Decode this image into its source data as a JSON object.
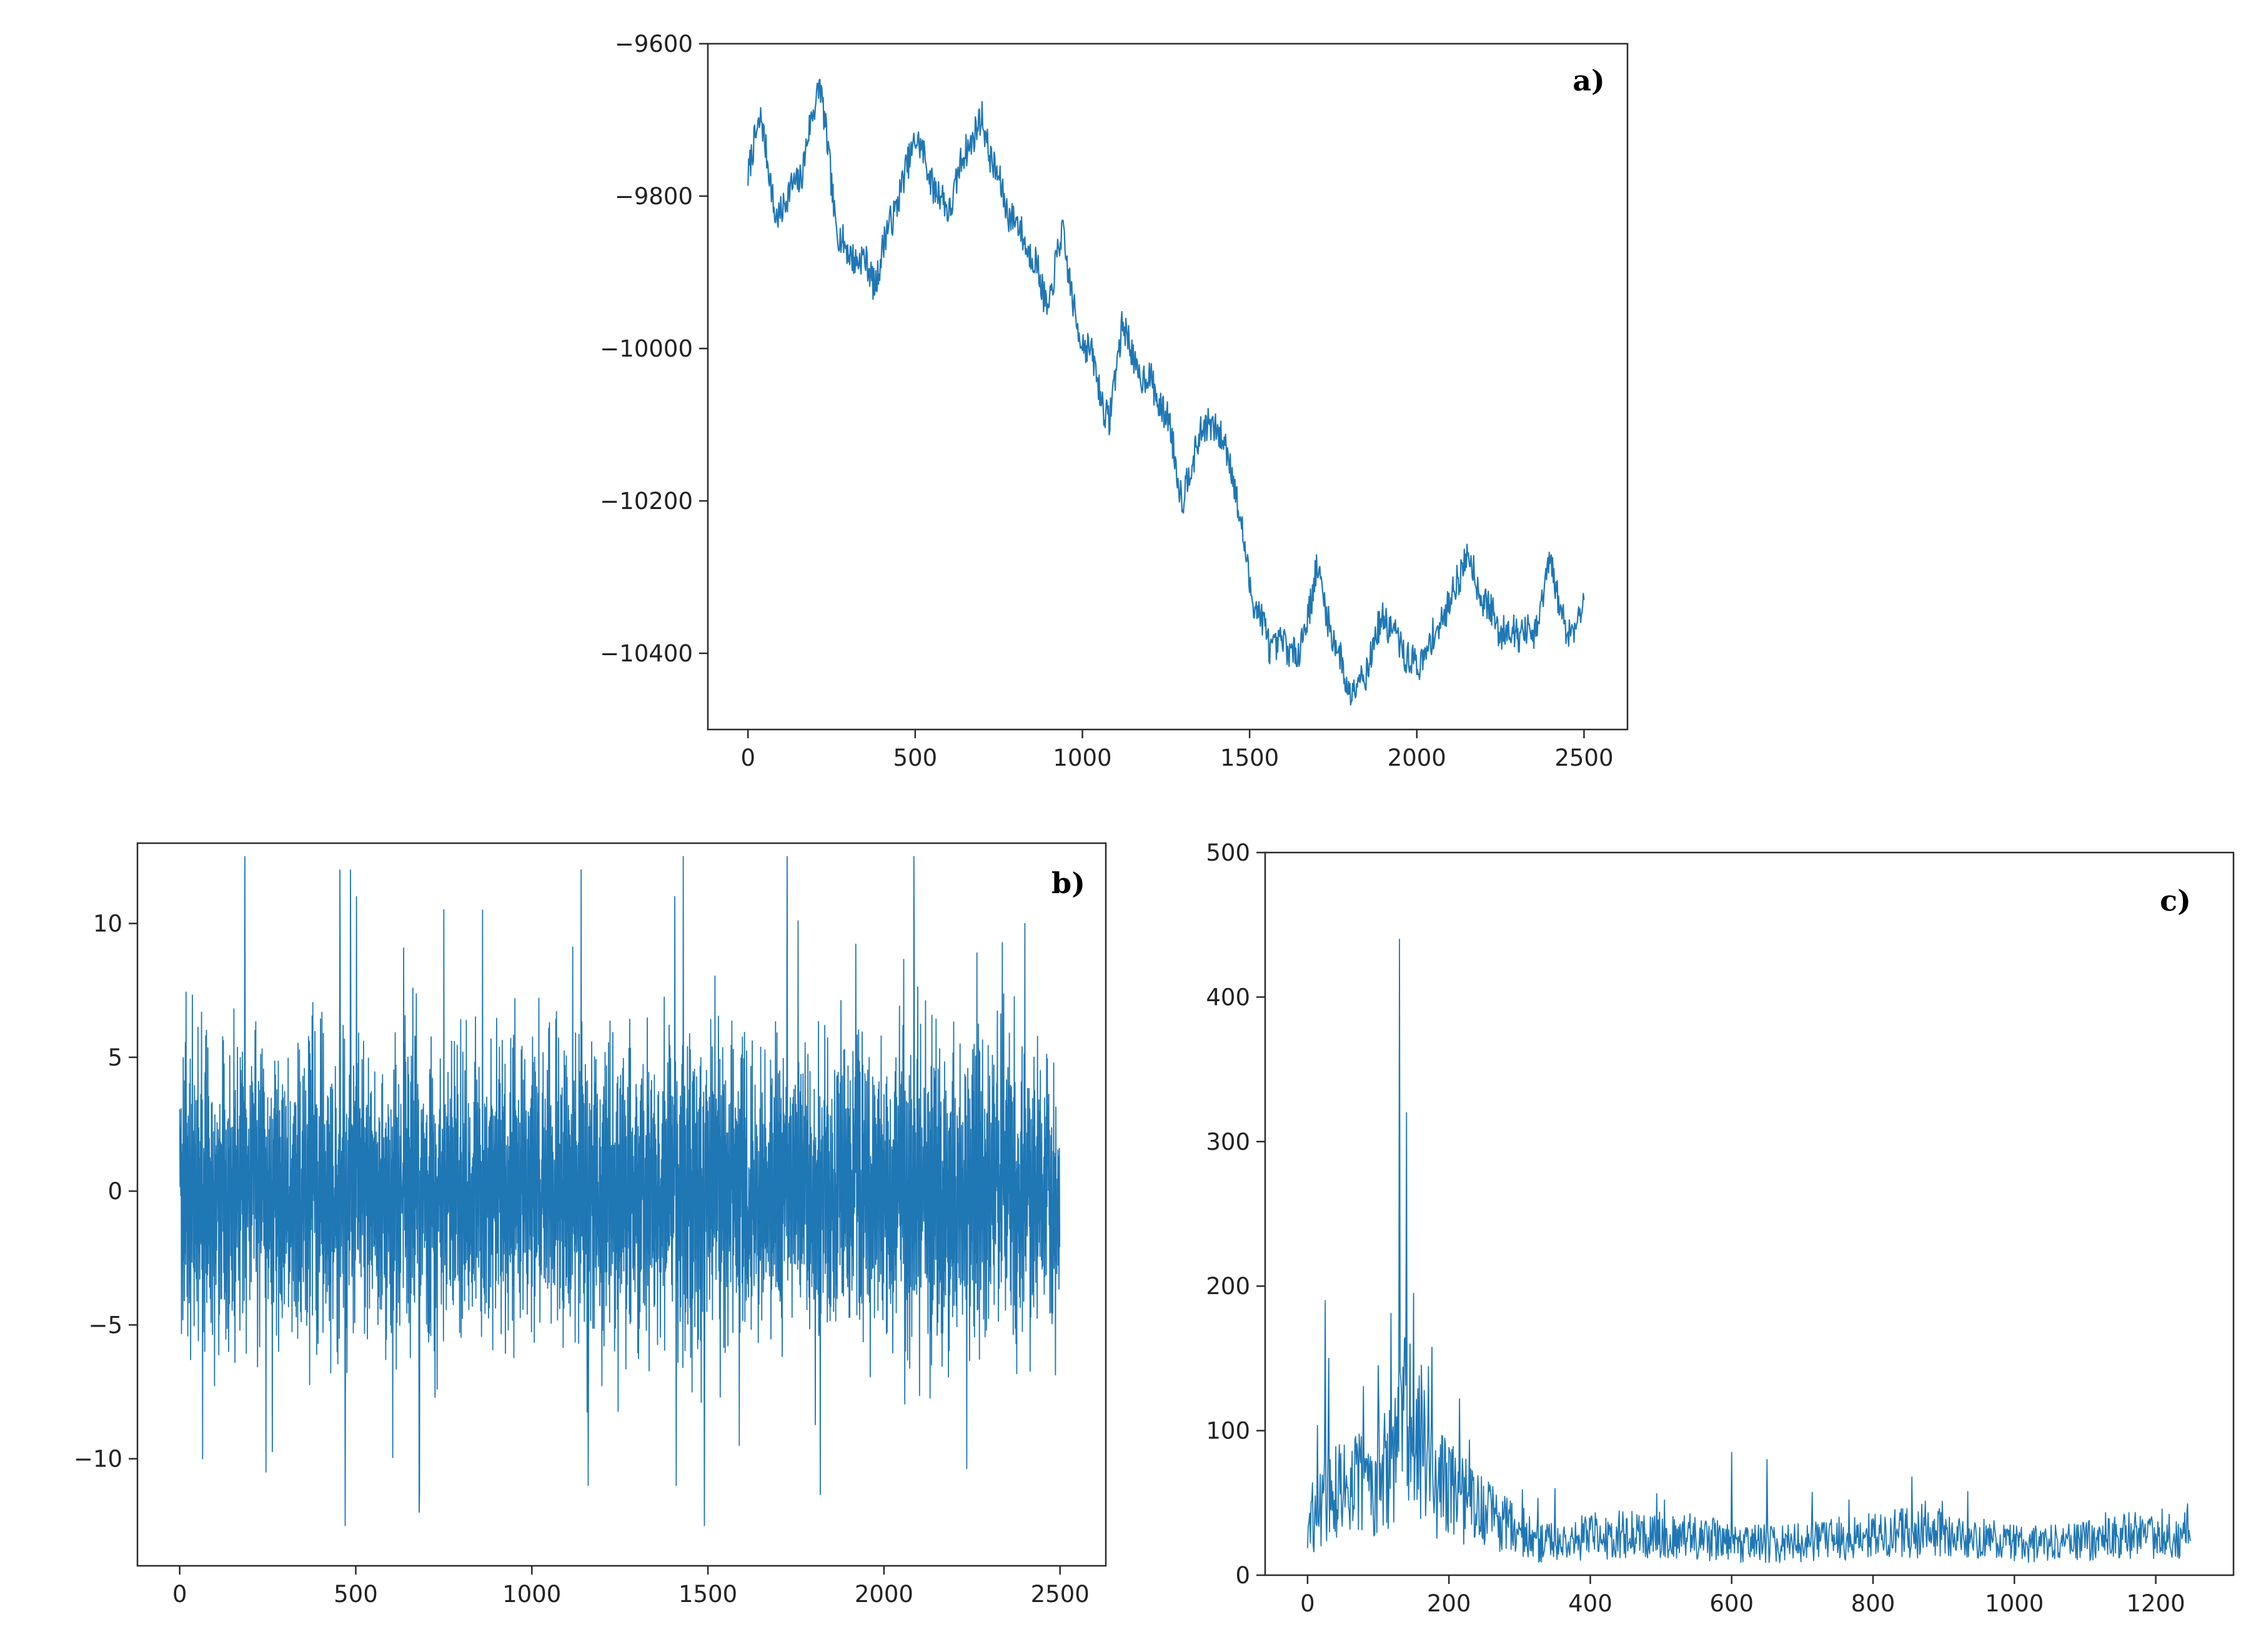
{
  "chart_data": [
    {
      "type": "line",
      "panel_label": "a)",
      "color": "#1f77b4",
      "xlim": [
        -120,
        2630
      ],
      "ylim": [
        -10500,
        -9600
      ],
      "xticks": [
        0,
        500,
        1000,
        1500,
        2000,
        2500
      ],
      "yticks": [
        -9600,
        -9800,
        -10000,
        -10200,
        -10400
      ],
      "xtick_labels": [
        "0",
        "500",
        "1000",
        "1500",
        "2000",
        "2500"
      ],
      "ytick_labels": [
        "−9600",
        "−9800",
        "−10000",
        "−10200",
        "−10400"
      ],
      "x": [
        0,
        40,
        80,
        120,
        160,
        215,
        260,
        300,
        340,
        380,
        420,
        460,
        500,
        560,
        600,
        650,
        700,
        740,
        780,
        820,
        860,
        900,
        940,
        980,
        1020,
        1080,
        1120,
        1160,
        1200,
        1260,
        1300,
        1350,
        1400,
        1450,
        1500,
        1560,
        1600,
        1650,
        1700,
        1750,
        1800,
        1850,
        1900,
        1950,
        2000,
        2050,
        2100,
        2150,
        2200,
        2250,
        2300,
        2350,
        2400,
        2450,
        2500
      ],
      "y": [
        -9775,
        -9690,
        -9830,
        -9800,
        -9770,
        -9645,
        -9830,
        -9880,
        -9880,
        -9915,
        -9840,
        -9790,
        -9720,
        -9790,
        -9820,
        -9740,
        -9700,
        -9770,
        -9820,
        -9850,
        -9890,
        -9950,
        -9840,
        -9970,
        -10000,
        -10100,
        -9960,
        -10030,
        -10040,
        -10100,
        -10200,
        -10110,
        -10100,
        -10160,
        -10310,
        -10390,
        -10390,
        -10400,
        -10290,
        -10380,
        -10450,
        -10420,
        -10350,
        -10390,
        -10420,
        -10380,
        -10330,
        -10270,
        -10330,
        -10370,
        -10370,
        -10380,
        -10280,
        -10380,
        -10330
      ]
    },
    {
      "type": "line",
      "panel_label": "b)",
      "color": "#1f77b4",
      "xlim": [
        -120,
        2630
      ],
      "ylim": [
        -14,
        13
      ],
      "xticks": [
        0,
        500,
        1000,
        1500,
        2000,
        2500
      ],
      "yticks": [
        10,
        5,
        0,
        -5,
        -10
      ],
      "xtick_labels": [
        "0",
        "500",
        "1000",
        "1500",
        "2000",
        "2500"
      ],
      "ytick_labels": [
        "10",
        "5",
        "0",
        "−5",
        "−10"
      ],
      "n": 2500,
      "y_range": [
        -12.5,
        12.5
      ],
      "spikes": [
        {
          "x": 185,
          "y": 12.5
        },
        {
          "x": 455,
          "y": 12
        },
        {
          "x": 485,
          "y": 12
        },
        {
          "x": 1430,
          "y": 12.5
        },
        {
          "x": 1140,
          "y": 12
        },
        {
          "x": 1725,
          "y": 12.5
        },
        {
          "x": 2085,
          "y": 12.5
        },
        {
          "x": 470,
          "y": -12.5
        },
        {
          "x": 1490,
          "y": -12.5
        },
        {
          "x": 1160,
          "y": -11
        },
        {
          "x": 1410,
          "y": -11
        },
        {
          "x": 245,
          "y": -10.5
        },
        {
          "x": 65,
          "y": -10
        },
        {
          "x": 680,
          "y": -12
        },
        {
          "x": 2400,
          "y": 10
        },
        {
          "x": 860,
          "y": 10.5
        }
      ]
    },
    {
      "type": "line",
      "panel_label": "c)",
      "color": "#1f77b4",
      "xlim": [
        -60,
        1310
      ],
      "ylim": [
        0,
        500
      ],
      "xticks": [
        0,
        200,
        400,
        600,
        800,
        1000,
        1200
      ],
      "yticks": [
        500,
        400,
        300,
        200,
        100,
        0
      ],
      "xtick_labels": [
        "0",
        "200",
        "400",
        "600",
        "800",
        "1000",
        "1200"
      ],
      "ytick_labels": [
        "500",
        "400",
        "300",
        "200",
        "100",
        "0"
      ],
      "n": 1250,
      "peaks": [
        {
          "x": 25,
          "y": 190
        },
        {
          "x": 30,
          "y": 150
        },
        {
          "x": 100,
          "y": 145
        },
        {
          "x": 130,
          "y": 440
        },
        {
          "x": 140,
          "y": 320
        },
        {
          "x": 150,
          "y": 195
        },
        {
          "x": 600,
          "y": 85
        },
        {
          "x": 650,
          "y": 80
        }
      ]
    }
  ]
}
